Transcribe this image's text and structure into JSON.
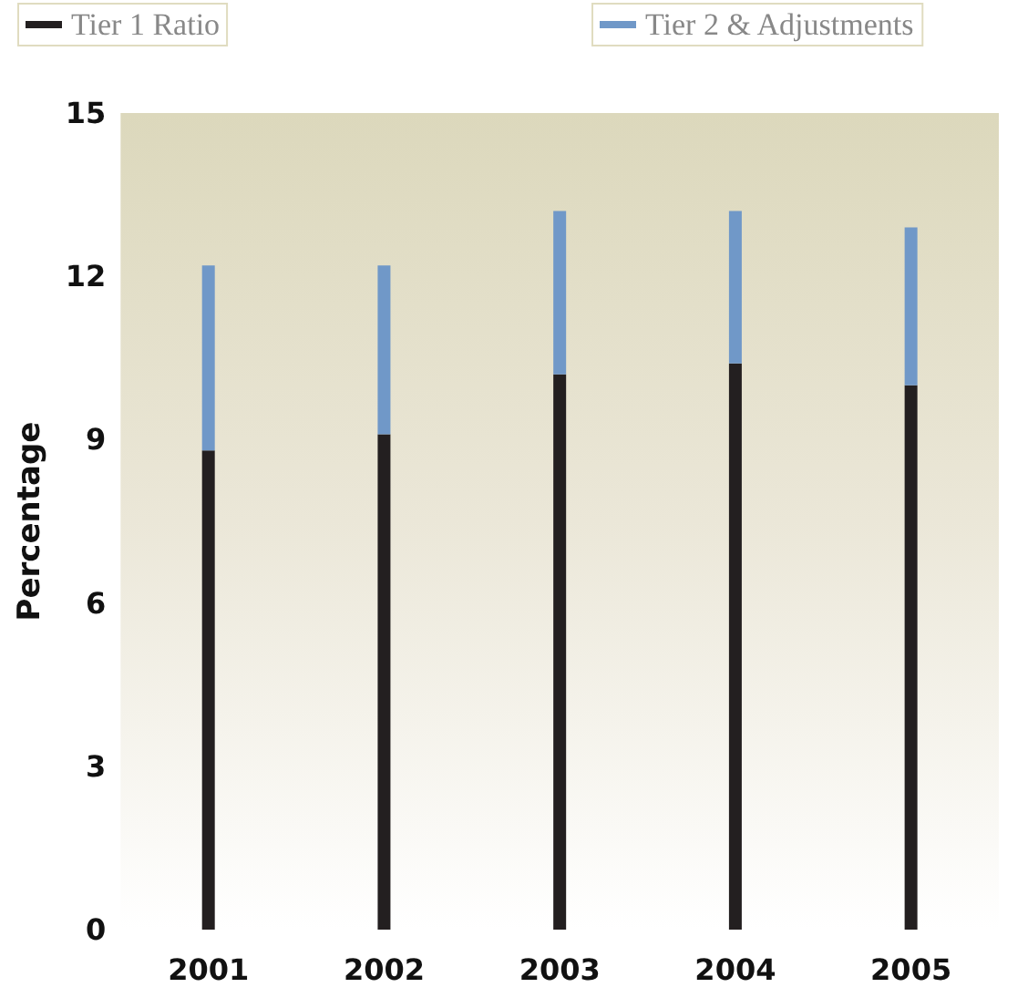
{
  "chart_data": {
    "type": "bar",
    "stacked": true,
    "ylabel": "Percentage",
    "categories": [
      "2001",
      "2002",
      "2003",
      "2004",
      "2005"
    ],
    "series": [
      {
        "name": "Tier 1 Ratio",
        "color": "#231f20",
        "values": [
          8.8,
          9.1,
          10.2,
          10.4,
          10.0
        ]
      },
      {
        "name": "Tier 2 & Adjustments",
        "color": "#7098c8",
        "values": [
          3.4,
          3.1,
          3.0,
          2.8,
          2.9
        ]
      }
    ],
    "ylim": [
      0,
      15
    ],
    "yticks": [
      0,
      3,
      6,
      9,
      12,
      15
    ],
    "grid": false,
    "legend": "top"
  }
}
